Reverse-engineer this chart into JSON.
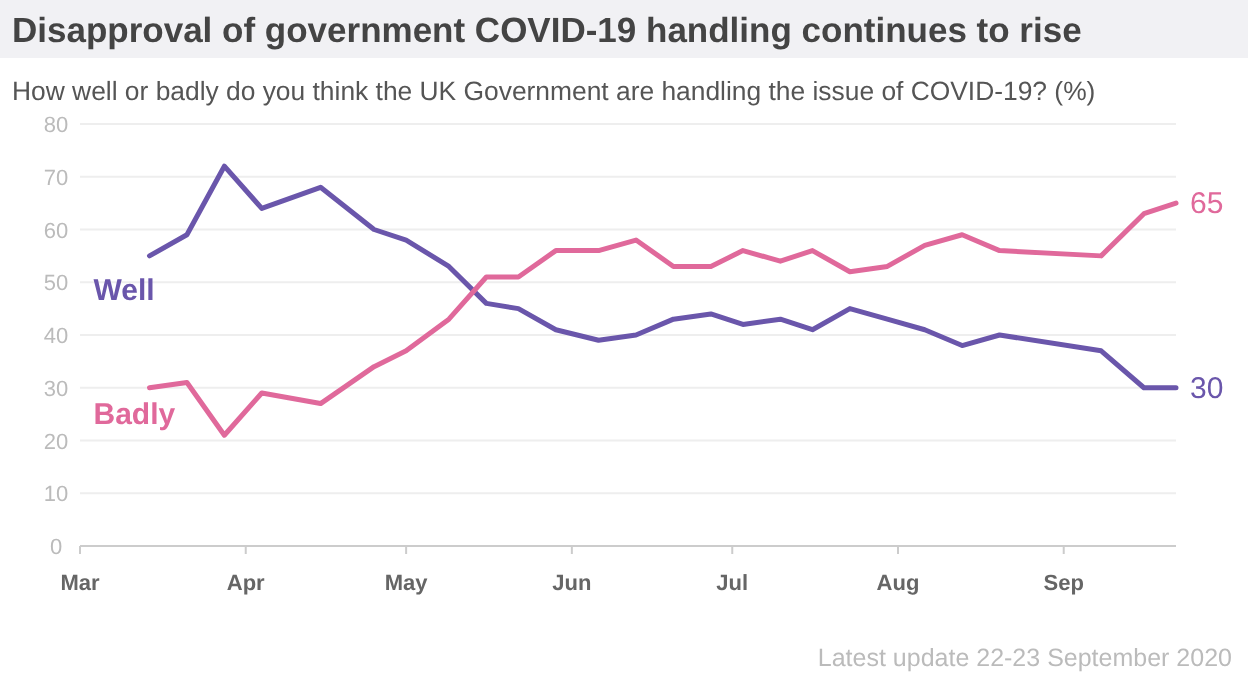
{
  "chart_data": {
    "type": "line",
    "title": "Disapproval of government COVID-19 handling continues to rise",
    "subtitle": "How well or badly do you think the UK Government are handling the issue of COVID-19? (%)",
    "x": [
      "2020-03-14",
      "2020-03-21",
      "2020-03-28",
      "2020-04-04",
      "2020-04-15",
      "2020-04-25",
      "2020-05-01",
      "2020-05-09",
      "2020-05-16",
      "2020-05-22",
      "2020-05-29",
      "2020-06-06",
      "2020-06-13",
      "2020-06-20",
      "2020-06-27",
      "2020-07-03",
      "2020-07-10",
      "2020-07-16",
      "2020-07-23",
      "2020-07-30",
      "2020-08-06",
      "2020-08-13",
      "2020-08-20",
      "2020-09-08",
      "2020-09-16",
      "2020-09-22"
    ],
    "series": [
      {
        "name": "Well",
        "color": "#6a56ab",
        "values": [
          55,
          59,
          72,
          64,
          68,
          60,
          58,
          53,
          46,
          45,
          41,
          39,
          40,
          43,
          44,
          42,
          43,
          41,
          45,
          43,
          41,
          38,
          40,
          37,
          30,
          30
        ],
        "value_labels": [
          null,
          null,
          null,
          null,
          null,
          null,
          null,
          null,
          null,
          null,
          null,
          null,
          null,
          null,
          null,
          null,
          null,
          null,
          null,
          null,
          null,
          null,
          null,
          null,
          null,
          "30"
        ]
      },
      {
        "name": "Badly",
        "color": "#e0699b",
        "values": [
          30,
          31,
          21,
          29,
          27,
          34,
          37,
          43,
          51,
          51,
          56,
          56,
          58,
          53,
          53,
          56,
          54,
          56,
          52,
          53,
          57,
          59,
          56,
          55,
          63,
          65
        ],
        "value_labels": [
          null,
          null,
          null,
          null,
          null,
          null,
          null,
          null,
          null,
          null,
          null,
          null,
          null,
          null,
          null,
          null,
          null,
          null,
          null,
          null,
          null,
          null,
          null,
          null,
          null,
          "65"
        ]
      }
    ],
    "xlim": [
      "2020-03-01",
      "2020-09-22"
    ],
    "xticks": [
      {
        "value": "2020-03-01",
        "label": "Mar"
      },
      {
        "value": "2020-04-01",
        "label": "Apr"
      },
      {
        "value": "2020-05-01",
        "label": "May"
      },
      {
        "value": "2020-06-01",
        "label": "Jun"
      },
      {
        "value": "2020-07-01",
        "label": "Jul"
      },
      {
        "value": "2020-08-01",
        "label": "Aug"
      },
      {
        "value": "2020-09-01",
        "label": "Sep"
      }
    ],
    "ylim": [
      0,
      80
    ],
    "yticks": [
      0,
      10,
      20,
      30,
      40,
      50,
      60,
      70,
      80
    ],
    "grid": "y",
    "marker": "none",
    "line_style": "solid",
    "annotations": [
      "Latest update 22-23 September 2020"
    ]
  }
}
